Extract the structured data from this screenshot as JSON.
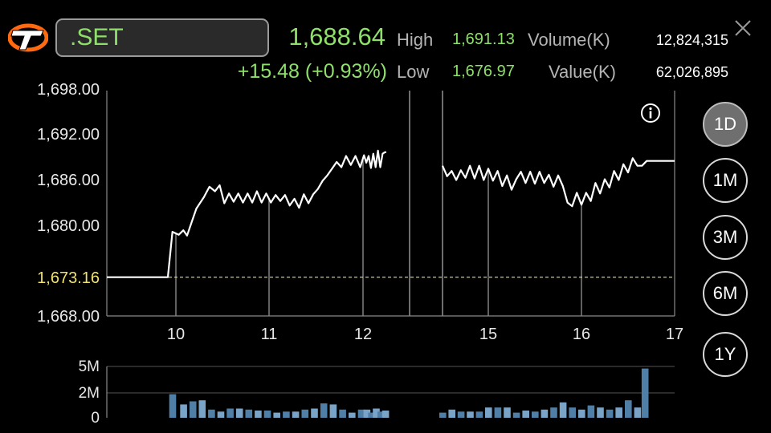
{
  "header": {
    "symbol": ".SET",
    "last_price": "1,688.64",
    "change": "+15.48 (+0.93%)",
    "high_label": "High",
    "high_value": "1,691.13",
    "low_label": "Low",
    "low_value": "1,676.97",
    "volume_label": "Volume(K)",
    "volume_value": "12,824,315",
    "value_label": "Value(K)",
    "value_value": "62,026,895"
  },
  "colors": {
    "up": "#8ee06a",
    "reference_line": "#f0e36b",
    "volume_bar": "#4f7fa6",
    "volume_bar_light": "#7aa3c8"
  },
  "icons": {
    "logo": "t-logo-icon",
    "close": "close-icon",
    "info": "info-icon"
  },
  "periods": [
    {
      "label": "1D",
      "active": true
    },
    {
      "label": "1M",
      "active": false
    },
    {
      "label": "3M",
      "active": false
    },
    {
      "label": "6M",
      "active": false
    },
    {
      "label": "1Y",
      "active": false
    }
  ],
  "chart_data": {
    "type": "line",
    "y_ticks": [
      "1,698.00",
      "1,692.00",
      "1,686.00",
      "1,680.00",
      "1,668.00"
    ],
    "y_tick_values": [
      1698,
      1692,
      1686,
      1680,
      1668
    ],
    "reference_label": "1,673.16",
    "reference_value": 1673.16,
    "ylim": [
      1668,
      1698
    ],
    "x_ticks": [
      "10",
      "11",
      "12",
      "15",
      "16",
      "17"
    ],
    "x_tick_values": [
      10,
      11,
      12,
      15,
      16,
      17
    ],
    "session_break": [
      13,
      14.5
    ],
    "price_series": [
      [
        9.4,
        1673.16
      ],
      [
        9.93,
        1673.16
      ],
      [
        9.97,
        1679.2
      ],
      [
        10.03,
        1678.8
      ],
      [
        10.08,
        1679.4
      ],
      [
        10.12,
        1678.7
      ],
      [
        10.17,
        1680.5
      ],
      [
        10.22,
        1682.3
      ],
      [
        10.3,
        1683.8
      ],
      [
        10.36,
        1685.2
      ],
      [
        10.42,
        1684.6
      ],
      [
        10.47,
        1685.4
      ],
      [
        10.52,
        1683.0
      ],
      [
        10.57,
        1684.3
      ],
      [
        10.62,
        1683.2
      ],
      [
        10.67,
        1684.3
      ],
      [
        10.72,
        1683.1
      ],
      [
        10.77,
        1684.3
      ],
      [
        10.82,
        1683.1
      ],
      [
        10.87,
        1684.6
      ],
      [
        10.92,
        1683.1
      ],
      [
        10.97,
        1684.3
      ],
      [
        11.02,
        1683.1
      ],
      [
        11.07,
        1684.1
      ],
      [
        11.12,
        1683.3
      ],
      [
        11.17,
        1684.1
      ],
      [
        11.22,
        1682.7
      ],
      [
        11.27,
        1683.6
      ],
      [
        11.32,
        1682.4
      ],
      [
        11.37,
        1684.2
      ],
      [
        11.42,
        1683.0
      ],
      [
        11.47,
        1684.2
      ],
      [
        11.52,
        1684.9
      ],
      [
        11.57,
        1686.0
      ],
      [
        11.62,
        1686.7
      ],
      [
        11.67,
        1687.6
      ],
      [
        11.72,
        1688.5
      ],
      [
        11.77,
        1687.8
      ],
      [
        11.82,
        1689.3
      ],
      [
        11.87,
        1688.1
      ],
      [
        11.92,
        1689.3
      ],
      [
        11.97,
        1687.8
      ],
      [
        12.02,
        1689.4
      ],
      [
        12.07,
        1688.4
      ],
      [
        12.12,
        1689.3
      ],
      [
        12.17,
        1687.7
      ],
      [
        12.22,
        1689.6
      ],
      [
        12.27,
        1687.8
      ],
      [
        12.32,
        1690.0
      ],
      [
        12.37,
        1687.8
      ],
      [
        12.42,
        1689.6
      ],
      [
        12.47,
        1689.8
      ],
      [
        12.5,
        1689.8
      ],
      null,
      [
        14.5,
        1688.0
      ],
      [
        14.55,
        1686.6
      ],
      [
        14.6,
        1687.3
      ],
      [
        14.65,
        1686.1
      ],
      [
        14.7,
        1687.4
      ],
      [
        14.75,
        1686.4
      ],
      [
        14.8,
        1688.0
      ],
      [
        14.85,
        1686.3
      ],
      [
        14.9,
        1688.0
      ],
      [
        14.95,
        1686.1
      ],
      [
        15.0,
        1687.6
      ],
      [
        15.05,
        1686.0
      ],
      [
        15.1,
        1687.3
      ],
      [
        15.15,
        1685.3
      ],
      [
        15.2,
        1686.7
      ],
      [
        15.25,
        1684.8
      ],
      [
        15.3,
        1686.2
      ],
      [
        15.35,
        1687.2
      ],
      [
        15.4,
        1685.7
      ],
      [
        15.45,
        1687.2
      ],
      [
        15.5,
        1685.6
      ],
      [
        15.55,
        1687.2
      ],
      [
        15.6,
        1685.7
      ],
      [
        15.65,
        1686.8
      ],
      [
        15.7,
        1685.2
      ],
      [
        15.75,
        1686.7
      ],
      [
        15.8,
        1685.3
      ],
      [
        15.85,
        1683.1
      ],
      [
        15.9,
        1682.6
      ],
      [
        15.95,
        1684.4
      ],
      [
        16.0,
        1682.8
      ],
      [
        16.05,
        1684.4
      ],
      [
        16.1,
        1683.3
      ],
      [
        16.15,
        1685.7
      ],
      [
        16.2,
        1684.3
      ],
      [
        16.25,
        1686.2
      ],
      [
        16.3,
        1685.1
      ],
      [
        16.35,
        1687.3
      ],
      [
        16.4,
        1686.1
      ],
      [
        16.45,
        1688.2
      ],
      [
        16.5,
        1687.1
      ],
      [
        16.55,
        1689.0
      ],
      [
        16.6,
        1688.0
      ],
      [
        16.65,
        1688.0
      ],
      [
        16.7,
        1688.64
      ],
      [
        17.0,
        1688.64
      ]
    ],
    "volume_ticks": [
      "5M",
      "2M",
      "0"
    ],
    "volume_tick_values": [
      5,
      2,
      0
    ],
    "volume_max": 5,
    "volume_series": [
      [
        9.97,
        2.3
      ],
      [
        10.08,
        1.3
      ],
      [
        10.18,
        1.6
      ],
      [
        10.28,
        1.7
      ],
      [
        10.38,
        0.8
      ],
      [
        10.48,
        0.6
      ],
      [
        10.58,
        0.9
      ],
      [
        10.68,
        0.9
      ],
      [
        10.78,
        0.8
      ],
      [
        10.88,
        0.7
      ],
      [
        10.98,
        0.7
      ],
      [
        11.08,
        0.5
      ],
      [
        11.18,
        0.6
      ],
      [
        11.28,
        0.6
      ],
      [
        11.38,
        0.8
      ],
      [
        11.48,
        0.9
      ],
      [
        11.58,
        1.4
      ],
      [
        11.68,
        1.3
      ],
      [
        11.78,
        0.8
      ],
      [
        11.88,
        0.5
      ],
      [
        11.98,
        0.8
      ],
      [
        12.08,
        0.8
      ],
      [
        12.18,
        0.5
      ],
      [
        12.28,
        0.9
      ],
      [
        12.38,
        0.6
      ],
      [
        12.48,
        0.7
      ],
      [
        14.5,
        0.5
      ],
      [
        14.6,
        0.8
      ],
      [
        14.7,
        0.6
      ],
      [
        14.8,
        0.6
      ],
      [
        14.9,
        0.6
      ],
      [
        15.0,
        1.0
      ],
      [
        15.1,
        1.0
      ],
      [
        15.2,
        1.0
      ],
      [
        15.3,
        0.5
      ],
      [
        15.4,
        0.7
      ],
      [
        15.5,
        0.6
      ],
      [
        15.6,
        0.8
      ],
      [
        15.7,
        1.0
      ],
      [
        15.8,
        1.5
      ],
      [
        15.9,
        1.0
      ],
      [
        16.0,
        0.8
      ],
      [
        16.1,
        1.2
      ],
      [
        16.2,
        1.0
      ],
      [
        16.3,
        0.8
      ],
      [
        16.4,
        1.0
      ],
      [
        16.5,
        1.7
      ],
      [
        16.6,
        1.0
      ],
      [
        16.68,
        4.8
      ]
    ]
  }
}
